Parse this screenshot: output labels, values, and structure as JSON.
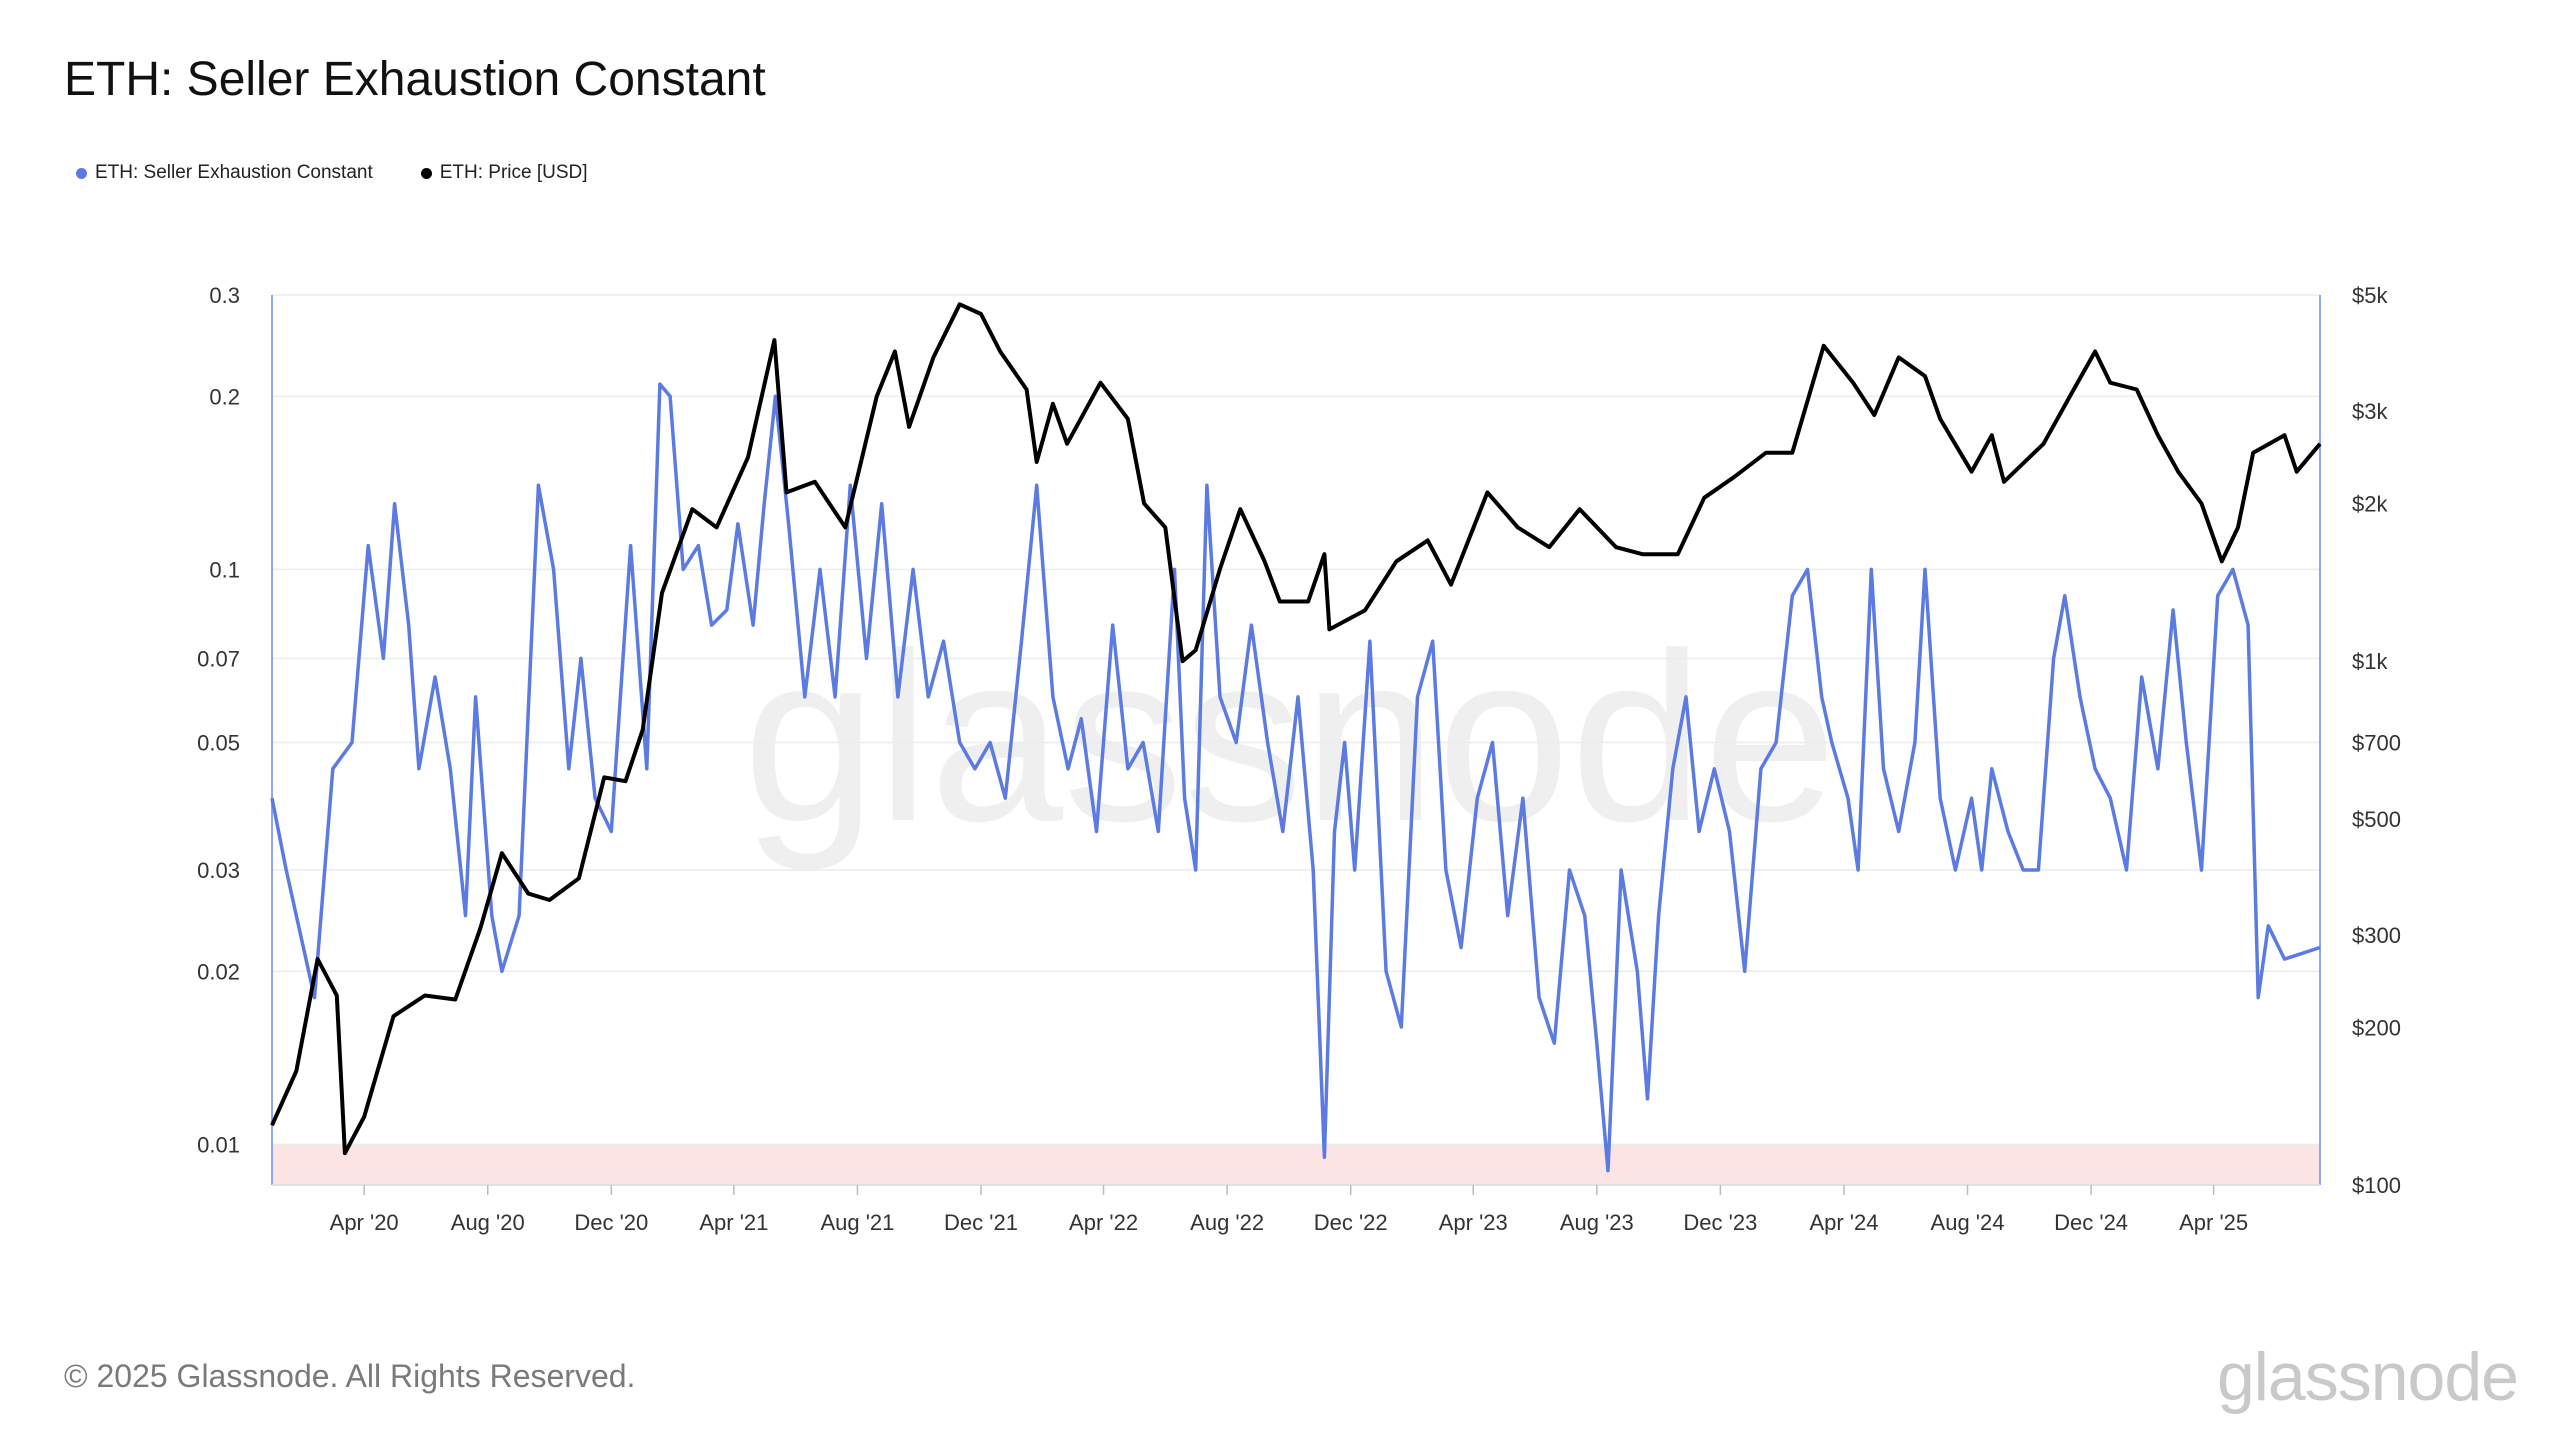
{
  "title": "ETH: Seller Exhaustion Constant",
  "legend": [
    {
      "label": "ETH: Seller Exhaustion Constant",
      "color": "#5b7be3"
    },
    {
      "label": "ETH: Price [USD]",
      "color": "#000000"
    }
  ],
  "footer": "© 2025 Glassnode. All Rights Reserved.",
  "brand": "glassnode",
  "watermark": "glassnode",
  "chart_data": {
    "type": "line",
    "title": "ETH: Seller Exhaustion Constant",
    "x_start": "2020-01-01",
    "x_end": "2025-07-15",
    "x_ticks": [
      {
        "label": "Apr '20",
        "date": "2020-04-01"
      },
      {
        "label": "Aug '20",
        "date": "2020-08-01"
      },
      {
        "label": "Dec '20",
        "date": "2020-12-01"
      },
      {
        "label": "Apr '21",
        "date": "2021-04-01"
      },
      {
        "label": "Aug '21",
        "date": "2021-08-01"
      },
      {
        "label": "Dec '21",
        "date": "2021-12-01"
      },
      {
        "label": "Apr '22",
        "date": "2022-04-01"
      },
      {
        "label": "Aug '22",
        "date": "2022-08-01"
      },
      {
        "label": "Dec '22",
        "date": "2022-12-01"
      },
      {
        "label": "Apr '23",
        "date": "2023-04-01"
      },
      {
        "label": "Aug '23",
        "date": "2023-08-01"
      },
      {
        "label": "Dec '23",
        "date": "2023-12-01"
      },
      {
        "label": "Apr '24",
        "date": "2024-04-01"
      },
      {
        "label": "Aug '24",
        "date": "2024-08-01"
      },
      {
        "label": "Dec '24",
        "date": "2024-12-01"
      },
      {
        "label": "Apr '25",
        "date": "2025-04-01"
      }
    ],
    "left_axis": {
      "scale": "log",
      "min": 0.0085,
      "max": 0.3,
      "ticks": [
        {
          "v": 0.3,
          "label": "0.3"
        },
        {
          "v": 0.2,
          "label": "0.2"
        },
        {
          "v": 0.1,
          "label": "0.1"
        },
        {
          "v": 0.07,
          "label": "0.07"
        },
        {
          "v": 0.05,
          "label": "0.05"
        },
        {
          "v": 0.03,
          "label": "0.03"
        },
        {
          "v": 0.02,
          "label": "0.02"
        },
        {
          "v": 0.01,
          "label": "0.01"
        }
      ]
    },
    "right_axis": {
      "scale": "log",
      "min": 100,
      "max": 5000,
      "ticks": [
        {
          "v": 5000,
          "label": "$5k"
        },
        {
          "v": 3000,
          "label": "$3k"
        },
        {
          "v": 2000,
          "label": "$2k"
        },
        {
          "v": 1000,
          "label": "$1k"
        },
        {
          "v": 700,
          "label": "$700"
        },
        {
          "v": 500,
          "label": "$500"
        },
        {
          "v": 300,
          "label": "$300"
        },
        {
          "v": 200,
          "label": "$200"
        },
        {
          "v": 100,
          "label": "$100"
        }
      ]
    },
    "threshold_band": {
      "from": 0.0085,
      "to": 0.01,
      "color": "#fde4e4"
    },
    "series": [
      {
        "name": "ETH: Seller Exhaustion Constant",
        "axis": "left",
        "color": "#5b7be3",
        "points": [
          [
            "2020-01-01",
            0.04
          ],
          [
            "2020-01-15",
            0.03
          ],
          [
            "2020-02-01",
            0.022
          ],
          [
            "2020-02-12",
            0.018
          ],
          [
            "2020-03-01",
            0.045
          ],
          [
            "2020-03-20",
            0.05
          ],
          [
            "2020-04-05",
            0.11
          ],
          [
            "2020-04-20",
            0.07
          ],
          [
            "2020-05-01",
            0.13
          ],
          [
            "2020-05-15",
            0.08
          ],
          [
            "2020-05-25",
            0.045
          ],
          [
            "2020-06-10",
            0.065
          ],
          [
            "2020-06-25",
            0.045
          ],
          [
            "2020-07-10",
            0.025
          ],
          [
            "2020-07-20",
            0.06
          ],
          [
            "2020-08-05",
            0.025
          ],
          [
            "2020-08-15",
            0.02
          ],
          [
            "2020-09-01",
            0.025
          ],
          [
            "2020-09-20",
            0.14
          ],
          [
            "2020-10-05",
            0.1
          ],
          [
            "2020-10-20",
            0.045
          ],
          [
            "2020-11-01",
            0.07
          ],
          [
            "2020-11-15",
            0.04
          ],
          [
            "2020-12-01",
            0.035
          ],
          [
            "2020-12-20",
            0.11
          ],
          [
            "2021-01-05",
            0.045
          ],
          [
            "2021-01-18",
            0.21
          ],
          [
            "2021-01-28",
            0.2
          ],
          [
            "2021-02-10",
            0.1
          ],
          [
            "2021-02-25",
            0.11
          ],
          [
            "2021-03-10",
            0.08
          ],
          [
            "2021-03-25",
            0.085
          ],
          [
            "2021-04-05",
            0.12
          ],
          [
            "2021-04-20",
            0.08
          ],
          [
            "2021-05-01",
            0.13
          ],
          [
            "2021-05-12",
            0.2
          ],
          [
            "2021-05-25",
            0.12
          ],
          [
            "2021-06-10",
            0.06
          ],
          [
            "2021-06-25",
            0.1
          ],
          [
            "2021-07-10",
            0.06
          ],
          [
            "2021-07-25",
            0.14
          ],
          [
            "2021-08-10",
            0.07
          ],
          [
            "2021-08-25",
            0.13
          ],
          [
            "2021-09-10",
            0.06
          ],
          [
            "2021-09-25",
            0.1
          ],
          [
            "2021-10-10",
            0.06
          ],
          [
            "2021-10-25",
            0.075
          ],
          [
            "2021-11-10",
            0.05
          ],
          [
            "2021-11-25",
            0.045
          ],
          [
            "2021-12-10",
            0.05
          ],
          [
            "2021-12-25",
            0.04
          ],
          [
            "2022-01-10",
            0.075
          ],
          [
            "2022-01-25",
            0.14
          ],
          [
            "2022-02-10",
            0.06
          ],
          [
            "2022-02-25",
            0.045
          ],
          [
            "2022-03-10",
            0.055
          ],
          [
            "2022-03-25",
            0.035
          ],
          [
            "2022-04-10",
            0.08
          ],
          [
            "2022-04-25",
            0.045
          ],
          [
            "2022-05-10",
            0.05
          ],
          [
            "2022-05-25",
            0.035
          ],
          [
            "2022-06-10",
            0.1
          ],
          [
            "2022-06-20",
            0.04
          ],
          [
            "2022-07-01",
            0.03
          ],
          [
            "2022-07-12",
            0.14
          ],
          [
            "2022-07-25",
            0.06
          ],
          [
            "2022-08-10",
            0.05
          ],
          [
            "2022-08-25",
            0.08
          ],
          [
            "2022-09-10",
            0.05
          ],
          [
            "2022-09-25",
            0.035
          ],
          [
            "2022-10-10",
            0.06
          ],
          [
            "2022-10-25",
            0.03
          ],
          [
            "2022-11-05",
            0.0095
          ],
          [
            "2022-11-15",
            0.035
          ],
          [
            "2022-11-25",
            0.05
          ],
          [
            "2022-12-05",
            0.03
          ],
          [
            "2022-12-20",
            0.075
          ],
          [
            "2023-01-05",
            0.02
          ],
          [
            "2023-01-20",
            0.016
          ],
          [
            "2023-02-05",
            0.06
          ],
          [
            "2023-02-20",
            0.075
          ],
          [
            "2023-03-05",
            0.03
          ],
          [
            "2023-03-20",
            0.022
          ],
          [
            "2023-04-05",
            0.04
          ],
          [
            "2023-04-20",
            0.05
          ],
          [
            "2023-05-05",
            0.025
          ],
          [
            "2023-05-20",
            0.04
          ],
          [
            "2023-06-05",
            0.018
          ],
          [
            "2023-06-20",
            0.015
          ],
          [
            "2023-07-05",
            0.03
          ],
          [
            "2023-07-20",
            0.025
          ],
          [
            "2023-08-01",
            0.015
          ],
          [
            "2023-08-12",
            0.009
          ],
          [
            "2023-08-25",
            0.03
          ],
          [
            "2023-09-10",
            0.02
          ],
          [
            "2023-09-20",
            0.012
          ],
          [
            "2023-10-01",
            0.025
          ],
          [
            "2023-10-15",
            0.045
          ],
          [
            "2023-10-28",
            0.06
          ],
          [
            "2023-11-10",
            0.035
          ],
          [
            "2023-11-25",
            0.045
          ],
          [
            "2023-12-10",
            0.035
          ],
          [
            "2023-12-25",
            0.02
          ],
          [
            "2024-01-10",
            0.045
          ],
          [
            "2024-01-25",
            0.05
          ],
          [
            "2024-02-10",
            0.09
          ],
          [
            "2024-02-25",
            0.1
          ],
          [
            "2024-03-10",
            0.06
          ],
          [
            "2024-03-20",
            0.05
          ],
          [
            "2024-04-05",
            0.04
          ],
          [
            "2024-04-15",
            0.03
          ],
          [
            "2024-04-28",
            0.1
          ],
          [
            "2024-05-10",
            0.045
          ],
          [
            "2024-05-25",
            0.035
          ],
          [
            "2024-06-10",
            0.05
          ],
          [
            "2024-06-20",
            0.1
          ],
          [
            "2024-07-05",
            0.04
          ],
          [
            "2024-07-20",
            0.03
          ],
          [
            "2024-08-05",
            0.04
          ],
          [
            "2024-08-15",
            0.03
          ],
          [
            "2024-08-25",
            0.045
          ],
          [
            "2024-09-10",
            0.035
          ],
          [
            "2024-09-25",
            0.03
          ],
          [
            "2024-10-10",
            0.03
          ],
          [
            "2024-10-25",
            0.07
          ],
          [
            "2024-11-05",
            0.09
          ],
          [
            "2024-11-20",
            0.06
          ],
          [
            "2024-12-05",
            0.045
          ],
          [
            "2024-12-20",
            0.04
          ],
          [
            "2025-01-05",
            0.03
          ],
          [
            "2025-01-20",
            0.065
          ],
          [
            "2025-02-05",
            0.045
          ],
          [
            "2025-02-20",
            0.085
          ],
          [
            "2025-03-05",
            0.05
          ],
          [
            "2025-03-20",
            0.03
          ],
          [
            "2025-04-05",
            0.09
          ],
          [
            "2025-04-20",
            0.1
          ],
          [
            "2025-05-05",
            0.08
          ],
          [
            "2025-05-15",
            0.018
          ],
          [
            "2025-05-25",
            0.024
          ],
          [
            "2025-06-10",
            0.021
          ],
          [
            "2025-07-15",
            0.022
          ]
        ]
      },
      {
        "name": "ETH: Price [USD]",
        "axis": "right",
        "color": "#000000",
        "points": [
          [
            "2020-01-01",
            130
          ],
          [
            "2020-01-25",
            165
          ],
          [
            "2020-02-15",
            270
          ],
          [
            "2020-03-05",
            230
          ],
          [
            "2020-03-13",
            115
          ],
          [
            "2020-04-01",
            135
          ],
          [
            "2020-04-30",
            210
          ],
          [
            "2020-05-31",
            230
          ],
          [
            "2020-06-30",
            226
          ],
          [
            "2020-07-25",
            310
          ],
          [
            "2020-08-15",
            430
          ],
          [
            "2020-09-10",
            360
          ],
          [
            "2020-10-01",
            350
          ],
          [
            "2020-10-30",
            385
          ],
          [
            "2020-11-24",
            600
          ],
          [
            "2020-12-15",
            590
          ],
          [
            "2021-01-01",
            740
          ],
          [
            "2021-01-20",
            1350
          ],
          [
            "2021-02-19",
            1950
          ],
          [
            "2021-03-15",
            1800
          ],
          [
            "2021-04-15",
            2450
          ],
          [
            "2021-05-11",
            4100
          ],
          [
            "2021-05-23",
            2100
          ],
          [
            "2021-06-20",
            2200
          ],
          [
            "2021-07-20",
            1800
          ],
          [
            "2021-08-20",
            3200
          ],
          [
            "2021-09-07",
            3900
          ],
          [
            "2021-09-21",
            2800
          ],
          [
            "2021-10-15",
            3800
          ],
          [
            "2021-11-10",
            4800
          ],
          [
            "2021-12-01",
            4600
          ],
          [
            "2021-12-20",
            3900
          ],
          [
            "2022-01-15",
            3300
          ],
          [
            "2022-01-25",
            2400
          ],
          [
            "2022-02-10",
            3100
          ],
          [
            "2022-02-24",
            2600
          ],
          [
            "2022-03-29",
            3400
          ],
          [
            "2022-04-25",
            2900
          ],
          [
            "2022-05-11",
            2000
          ],
          [
            "2022-06-01",
            1800
          ],
          [
            "2022-06-18",
            1000
          ],
          [
            "2022-07-01",
            1050
          ],
          [
            "2022-07-25",
            1500
          ],
          [
            "2022-08-14",
            1950
          ],
          [
            "2022-09-07",
            1550
          ],
          [
            "2022-09-22",
            1300
          ],
          [
            "2022-10-20",
            1300
          ],
          [
            "2022-11-05",
            1600
          ],
          [
            "2022-11-10",
            1150
          ],
          [
            "2022-12-15",
            1250
          ],
          [
            "2023-01-15",
            1550
          ],
          [
            "2023-02-15",
            1700
          ],
          [
            "2023-03-10",
            1400
          ],
          [
            "2023-04-15",
            2100
          ],
          [
            "2023-05-15",
            1800
          ],
          [
            "2023-06-15",
            1650
          ],
          [
            "2023-07-15",
            1950
          ],
          [
            "2023-08-20",
            1650
          ],
          [
            "2023-09-15",
            1600
          ],
          [
            "2023-10-20",
            1600
          ],
          [
            "2023-11-15",
            2050
          ],
          [
            "2023-12-15",
            2250
          ],
          [
            "2024-01-15",
            2500
          ],
          [
            "2024-02-10",
            2500
          ],
          [
            "2024-03-12",
            4000
          ],
          [
            "2024-04-10",
            3400
          ],
          [
            "2024-05-01",
            2950
          ],
          [
            "2024-05-25",
            3800
          ],
          [
            "2024-06-20",
            3500
          ],
          [
            "2024-07-05",
            2900
          ],
          [
            "2024-08-05",
            2300
          ],
          [
            "2024-08-25",
            2700
          ],
          [
            "2024-09-06",
            2200
          ],
          [
            "2024-10-15",
            2600
          ],
          [
            "2024-11-10",
            3200
          ],
          [
            "2024-12-05",
            3900
          ],
          [
            "2024-12-20",
            3400
          ],
          [
            "2025-01-15",
            3300
          ],
          [
            "2025-02-05",
            2700
          ],
          [
            "2025-02-25",
            2300
          ],
          [
            "2025-03-20",
            2000
          ],
          [
            "2025-04-09",
            1550
          ],
          [
            "2025-04-25",
            1800
          ],
          [
            "2025-05-10",
            2500
          ],
          [
            "2025-06-10",
            2700
          ],
          [
            "2025-06-22",
            2300
          ],
          [
            "2025-07-15",
            2600
          ]
        ]
      }
    ]
  }
}
